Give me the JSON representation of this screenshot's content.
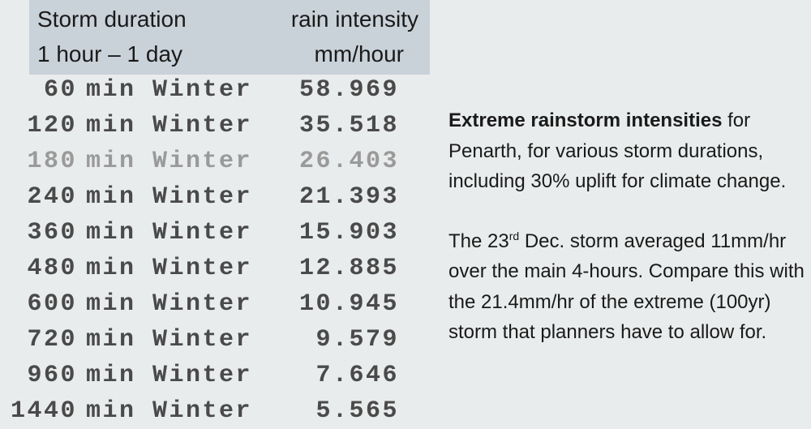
{
  "table": {
    "header": [
      [
        "Storm duration",
        "1 hour – 1 day"
      ],
      [
        "rain intensity",
        "mm/hour"
      ]
    ],
    "rows": [
      [
        "60",
        "min Winter",
        "58.969"
      ],
      [
        "120",
        "min Winter",
        "35.518"
      ],
      [
        "180",
        "min Winter",
        "26.403"
      ],
      [
        "240",
        "min Winter",
        "21.393"
      ],
      [
        "360",
        "min Winter",
        "15.903"
      ],
      [
        "480",
        "min Winter",
        "12.885"
      ],
      [
        "600",
        "min Winter",
        "10.945"
      ],
      [
        "720",
        "min Winter",
        "9.579"
      ],
      [
        "960",
        "min Winter",
        "7.646"
      ],
      [
        "1440",
        "min Winter",
        "5.565"
      ]
    ]
  },
  "notes": {
    "paragraph1": {
      "bold": "Extreme rainstorm intensities",
      "text": " for Penarth, for various storm durations, including 30% uplift for climate change."
    },
    "paragraph2": {
      "before": "The 23",
      "sup": "rd",
      "after": " Dec. storm averaged 11mm/hr over the main 4-hours. Compare this with the 21.4mm/hr of the extreme (100yr) storm that planners have to allow for."
    }
  }
}
